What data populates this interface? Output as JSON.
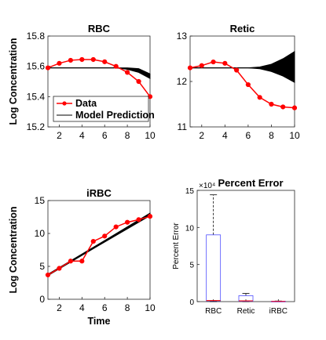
{
  "chart_data": [
    {
      "type": "line",
      "title": "RBC",
      "ylabel": "Log Concentration",
      "xlabel": "",
      "xlim": [
        1,
        10
      ],
      "ylim": [
        15.2,
        15.8
      ],
      "xticks": [
        "2",
        "4",
        "6",
        "8",
        "10"
      ],
      "yticks": [
        "15.2",
        "15.4",
        "15.6",
        "15.8"
      ],
      "legend_position": "bottom-left",
      "series": [
        {
          "name": "Data",
          "color": "#ff0000",
          "marker": "circle",
          "x": [
            1,
            2,
            3,
            4,
            5,
            6,
            7,
            8,
            9,
            10
          ],
          "y": [
            15.59,
            15.62,
            15.64,
            15.645,
            15.645,
            15.63,
            15.6,
            15.56,
            15.5,
            15.4
          ]
        },
        {
          "name": "Model Prediction",
          "color": "#000000",
          "x": [
            1,
            2,
            3,
            4,
            5,
            6,
            7,
            8,
            9,
            10
          ],
          "y": [
            15.59,
            15.59,
            15.59,
            15.59,
            15.59,
            15.59,
            15.59,
            15.585,
            15.57,
            15.53
          ],
          "band_low": [
            15.59,
            15.59,
            15.59,
            15.59,
            15.59,
            15.59,
            15.59,
            15.58,
            15.56,
            15.52
          ],
          "band_high": [
            15.59,
            15.59,
            15.59,
            15.59,
            15.59,
            15.59,
            15.59,
            15.59,
            15.585,
            15.55
          ]
        }
      ]
    },
    {
      "type": "line",
      "title": "Retic",
      "ylabel": "",
      "xlabel": "",
      "xlim": [
        1,
        10
      ],
      "ylim": [
        11,
        13
      ],
      "xticks": [
        "2",
        "4",
        "6",
        "8",
        "10"
      ],
      "yticks": [
        "11",
        "12",
        "13"
      ],
      "series": [
        {
          "name": "Data",
          "color": "#ff0000",
          "marker": "circle",
          "x": [
            1,
            2,
            3,
            4,
            5,
            6,
            7,
            8,
            9,
            10
          ],
          "y": [
            12.3,
            12.35,
            12.43,
            12.4,
            12.25,
            11.93,
            11.65,
            11.5,
            11.44,
            11.42
          ]
        },
        {
          "name": "Model Prediction",
          "color": "#000000",
          "x": [
            1,
            2,
            3,
            4,
            5,
            6,
            7,
            8,
            9,
            10
          ],
          "y": [
            12.3,
            12.3,
            12.3,
            12.3,
            12.3,
            12.3,
            12.3,
            12.3,
            12.3,
            12.3
          ],
          "band_low": [
            12.3,
            12.3,
            12.3,
            12.3,
            12.3,
            12.3,
            12.28,
            12.22,
            12.12,
            11.98
          ],
          "band_high": [
            12.3,
            12.3,
            12.3,
            12.3,
            12.3,
            12.3,
            12.32,
            12.38,
            12.5,
            12.66
          ]
        }
      ]
    },
    {
      "type": "line",
      "title": "iRBC",
      "ylabel": "Log Concentration",
      "xlabel": "Time",
      "xlim": [
        1,
        10
      ],
      "ylim": [
        0,
        15
      ],
      "xticks": [
        "2",
        "4",
        "6",
        "8",
        "10"
      ],
      "yticks": [
        "0",
        "5",
        "10",
        "15"
      ],
      "series": [
        {
          "name": "Data",
          "color": "#ff0000",
          "marker": "circle",
          "x": [
            1,
            2,
            3,
            4,
            5,
            6,
            7,
            8,
            9,
            10
          ],
          "y": [
            3.7,
            4.7,
            5.8,
            5.8,
            8.8,
            9.6,
            11.0,
            11.7,
            12.1,
            12.6
          ]
        },
        {
          "name": "Model Prediction",
          "color": "#000000",
          "x": [
            1,
            10
          ],
          "y": [
            3.7,
            12.9
          ],
          "band_low": [
            3.7,
            12.7
          ],
          "band_high": [
            3.7,
            13.1
          ]
        }
      ]
    },
    {
      "type": "box",
      "title": "Percent Error",
      "ylabel": "Percent Error",
      "xlabel": "",
      "exponent_label": "×10⁴",
      "ylim": [
        0,
        15
      ],
      "categories": [
        "RBC",
        "Retic",
        "iRBC"
      ],
      "yticks": [
        "0",
        "5",
        "10",
        "15"
      ],
      "boxes": [
        {
          "min": 0.0,
          "q1": 0.1,
          "median": 0.15,
          "q3": 9.0,
          "max": 14.4
        },
        {
          "min": 0.0,
          "q1": 0.05,
          "median": 0.1,
          "q3": 0.8,
          "max": 1.1
        },
        {
          "min": 0.0,
          "q1": 0.01,
          "median": 0.02,
          "q3": 0.05,
          "max": 0.08
        }
      ],
      "box_color": "#4d4dff",
      "median_color": "#ff0000",
      "whisker_color": "#000000"
    }
  ]
}
